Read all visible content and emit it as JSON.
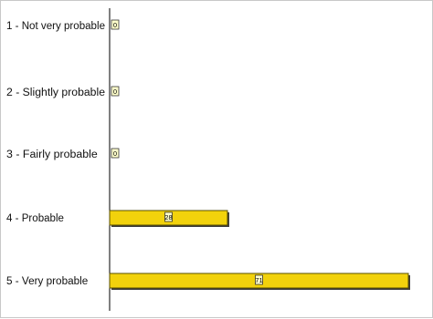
{
  "chart_data": {
    "type": "bar",
    "orientation": "horizontal",
    "title": "",
    "xlabel": "",
    "ylabel": "",
    "categories": [
      "1 - Not very probable",
      "2 - Slightly probable",
      "3 - Fairly probable",
      "4 - Probable",
      "5 - Very probable"
    ],
    "values": [
      0,
      0,
      0,
      28,
      71
    ],
    "xlim": [
      0,
      71
    ],
    "grid": false,
    "legend": "none",
    "bar_color": "#f2d20c",
    "bar_border_color": "#5a5000",
    "shadow_color": "#3a3a3a",
    "axis_color": "#000000",
    "frame_color": "#c8c8c8"
  }
}
